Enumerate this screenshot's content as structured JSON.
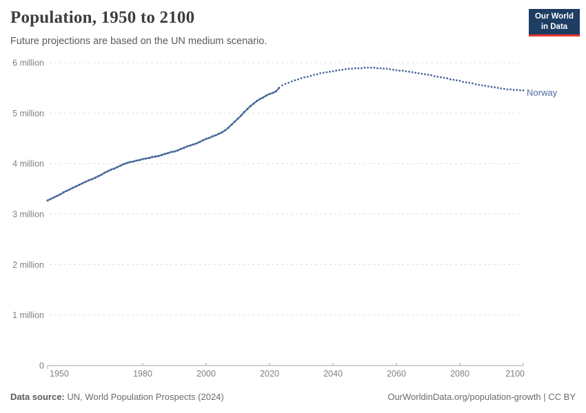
{
  "header": {
    "title": "Population, 1950 to 2100",
    "subtitle": "Future projections are based on the UN medium scenario.",
    "logo": {
      "line1": "Our World",
      "line2": "in Data"
    }
  },
  "footer": {
    "source_label": "Data source:",
    "source_text": "UN, World Population Prospects (2024)",
    "credit": "OurWorldinData.org/population-growth | CC BY"
  },
  "chart_data": {
    "type": "line",
    "title": "Population, 1950 to 2100",
    "subtitle": "Future projections are based on the UN medium scenario.",
    "entity": "Norway",
    "unit": "people (millions)",
    "x_range": [
      1950,
      2100
    ],
    "xticks": [
      1950,
      1980,
      2000,
      2020,
      2040,
      2060,
      2080,
      2100
    ],
    "ylim": [
      0,
      6
    ],
    "yticks": [
      0,
      1,
      2,
      3,
      4,
      5,
      6
    ],
    "ytick_labels": [
      "0",
      "1 million",
      "2 million",
      "3 million",
      "4 million",
      "5 million",
      "6 million"
    ],
    "grid": true,
    "legend_position": "line-end-label",
    "series": [
      {
        "name": "Norway (estimates)",
        "style": "solid_with_markers",
        "start_year": 1950,
        "values": [
          3.27,
          3.3,
          3.33,
          3.36,
          3.39,
          3.43,
          3.46,
          3.49,
          3.52,
          3.55,
          3.58,
          3.61,
          3.64,
          3.67,
          3.69,
          3.72,
          3.75,
          3.78,
          3.82,
          3.85,
          3.88,
          3.9,
          3.93,
          3.96,
          3.99,
          4.01,
          4.03,
          4.04,
          4.06,
          4.07,
          4.09,
          4.1,
          4.11,
          4.13,
          4.14,
          4.15,
          4.17,
          4.19,
          4.21,
          4.23,
          4.24,
          4.26,
          4.29,
          4.31,
          4.34,
          4.36,
          4.38,
          4.4,
          4.43,
          4.46,
          4.49,
          4.51,
          4.54,
          4.56,
          4.59,
          4.62,
          4.66,
          4.71,
          4.77,
          4.83,
          4.89,
          4.95,
          5.02,
          5.08,
          5.14,
          5.19,
          5.24,
          5.28,
          5.31,
          5.35,
          5.38,
          5.4,
          5.43,
          5.5
        ]
      },
      {
        "name": "Norway (UN medium projection)",
        "style": "dotted",
        "start_year": 2024,
        "values": [
          5.55,
          5.58,
          5.6,
          5.63,
          5.65,
          5.67,
          5.69,
          5.71,
          5.72,
          5.74,
          5.76,
          5.77,
          5.79,
          5.8,
          5.81,
          5.82,
          5.83,
          5.84,
          5.85,
          5.86,
          5.87,
          5.88,
          5.88,
          5.89,
          5.89,
          5.89,
          5.9,
          5.9,
          5.9,
          5.9,
          5.89,
          5.89,
          5.88,
          5.88,
          5.87,
          5.86,
          5.85,
          5.84,
          5.84,
          5.83,
          5.82,
          5.81,
          5.8,
          5.79,
          5.78,
          5.77,
          5.76,
          5.75,
          5.73,
          5.72,
          5.71,
          5.7,
          5.69,
          5.67,
          5.66,
          5.65,
          5.64,
          5.62,
          5.61,
          5.6,
          5.59,
          5.57,
          5.56,
          5.55,
          5.54,
          5.53,
          5.52,
          5.51,
          5.5,
          5.49,
          5.48,
          5.47,
          5.47,
          5.46,
          5.46,
          5.45,
          5.45
        ]
      }
    ],
    "colors": {
      "line": "#4c6a9c",
      "entity_label": "#4c6a9c",
      "grid": "#dcdcdc",
      "axis": "#a5a5a5",
      "tick_label": "#808080"
    }
  }
}
